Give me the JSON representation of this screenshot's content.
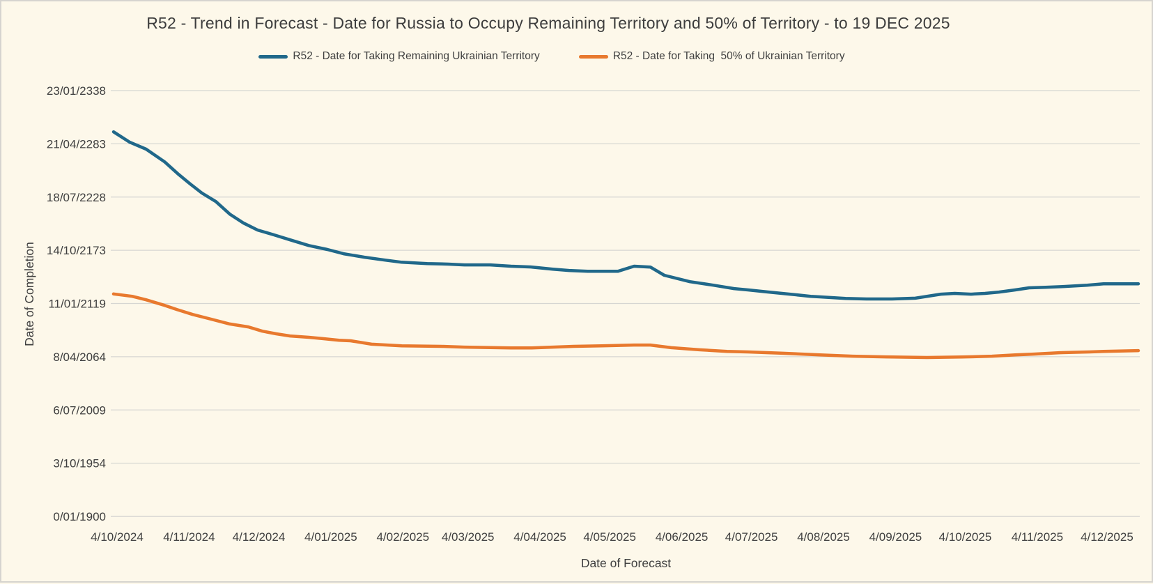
{
  "colors": {
    "background": "#fdf8ea",
    "border": "#d6d4cf",
    "gridline": "#d6d6d2",
    "text": "#3f3f3f",
    "series_remaining": "#20688a",
    "series_fifty_pct": "#e8792e"
  },
  "chart_data": {
    "type": "line",
    "title": "R52 - Trend in Forecast - Date for Russia to Occupy Remaining Territory and 50% of Territory - to 19 DEC 2025",
    "xlabel": "Date of Forecast",
    "ylabel": "Date of Completion",
    "legend_position": "top-center",
    "grid": "horizontal-only",
    "x_axis_note": "Forecast dates from 4/10/2024 to 19/12/2025; x expressed as day offset from 4/10/2024",
    "y_axis_note": "Y values are dates encoded as Excel serial day numbers; axis runs 0 (0/01/1900) to 160000 (23/01/2338) with gridlines every 20000 days",
    "x_domain_days": 441,
    "y_max_serial": 160000,
    "x_tick_day_offsets": [
      0,
      31,
      61,
      92,
      123,
      151,
      182,
      212,
      243,
      273,
      304,
      335,
      365,
      396,
      426
    ],
    "x_tick_labels": [
      "4/10/2024",
      "4/11/2024",
      "4/12/2024",
      "4/01/2025",
      "4/02/2025",
      "4/03/2025",
      "4/04/2025",
      "4/05/2025",
      "4/06/2025",
      "4/07/2025",
      "4/08/2025",
      "4/09/2025",
      "4/10/2025",
      "4/11/2025",
      "4/12/2025"
    ],
    "y_tick_serials": [
      0,
      20000,
      40000,
      60000,
      80000,
      100000,
      120000,
      140000,
      160000
    ],
    "y_tick_labels": [
      "0/01/1900",
      "3/10/1954",
      "6/07/2009",
      "8/04/2064",
      "11/01/2119",
      "14/10/2173",
      "18/07/2228",
      "21/04/2283",
      "23/01/2338"
    ],
    "series": [
      {
        "name": "R52 - Date for Taking Remaining Ukrainian Territory",
        "color": "#20688a",
        "points_day_serial": [
          [
            0,
            144500
          ],
          [
            7,
            140600
          ],
          [
            14,
            138000
          ],
          [
            22,
            133200
          ],
          [
            28,
            128500
          ],
          [
            33,
            124900
          ],
          [
            38,
            121500
          ],
          [
            44,
            118300
          ],
          [
            50,
            113600
          ],
          [
            56,
            110200
          ],
          [
            62,
            107600
          ],
          [
            69,
            105800
          ],
          [
            76,
            103900
          ],
          [
            84,
            101800
          ],
          [
            92,
            100300
          ],
          [
            99,
            98700
          ],
          [
            108,
            97400
          ],
          [
            117,
            96300
          ],
          [
            124,
            95500
          ],
          [
            135,
            95000
          ],
          [
            144,
            94800
          ],
          [
            151,
            94500
          ],
          [
            162,
            94500
          ],
          [
            171,
            94000
          ],
          [
            180,
            93700
          ],
          [
            189,
            92900
          ],
          [
            196,
            92400
          ],
          [
            204,
            92100
          ],
          [
            213,
            92100
          ],
          [
            217,
            92100
          ],
          [
            224,
            94000
          ],
          [
            231,
            93700
          ],
          [
            237,
            90600
          ],
          [
            248,
            88200
          ],
          [
            258,
            86900
          ],
          [
            267,
            85600
          ],
          [
            273,
            85100
          ],
          [
            282,
            84300
          ],
          [
            291,
            83500
          ],
          [
            300,
            82700
          ],
          [
            304,
            82500
          ],
          [
            315,
            81900
          ],
          [
            324,
            81700
          ],
          [
            335,
            81700
          ],
          [
            345,
            82000
          ],
          [
            356,
            83500
          ],
          [
            362,
            83800
          ],
          [
            369,
            83500
          ],
          [
            375,
            83800
          ],
          [
            381,
            84300
          ],
          [
            388,
            85100
          ],
          [
            394,
            85900
          ],
          [
            401,
            86100
          ],
          [
            409,
            86400
          ],
          [
            419,
            86900
          ],
          [
            426,
            87400
          ],
          [
            441,
            87400
          ]
        ]
      },
      {
        "name": "R52 - Date for Taking  50% of Ukrainian Territory",
        "color": "#e8792e",
        "points_day_serial": [
          [
            0,
            83600
          ],
          [
            8,
            82700
          ],
          [
            14,
            81400
          ],
          [
            22,
            79300
          ],
          [
            27,
            77800
          ],
          [
            34,
            75900
          ],
          [
            42,
            74100
          ],
          [
            50,
            72300
          ],
          [
            58,
            71200
          ],
          [
            64,
            69600
          ],
          [
            70,
            68600
          ],
          [
            76,
            67800
          ],
          [
            84,
            67300
          ],
          [
            90,
            66800
          ],
          [
            97,
            66200
          ],
          [
            102,
            66000
          ],
          [
            111,
            64700
          ],
          [
            124,
            64100
          ],
          [
            141,
            63900
          ],
          [
            151,
            63600
          ],
          [
            171,
            63300
          ],
          [
            180,
            63300
          ],
          [
            198,
            63900
          ],
          [
            210,
            64100
          ],
          [
            224,
            64400
          ],
          [
            231,
            64400
          ],
          [
            240,
            63400
          ],
          [
            252,
            62600
          ],
          [
            264,
            62000
          ],
          [
            273,
            61800
          ],
          [
            288,
            61300
          ],
          [
            304,
            60700
          ],
          [
            318,
            60200
          ],
          [
            335,
            59900
          ],
          [
            350,
            59700
          ],
          [
            365,
            59900
          ],
          [
            378,
            60200
          ],
          [
            388,
            60700
          ],
          [
            396,
            61000
          ],
          [
            407,
            61500
          ],
          [
            420,
            61800
          ],
          [
            426,
            62000
          ],
          [
            441,
            62300
          ]
        ]
      }
    ]
  }
}
